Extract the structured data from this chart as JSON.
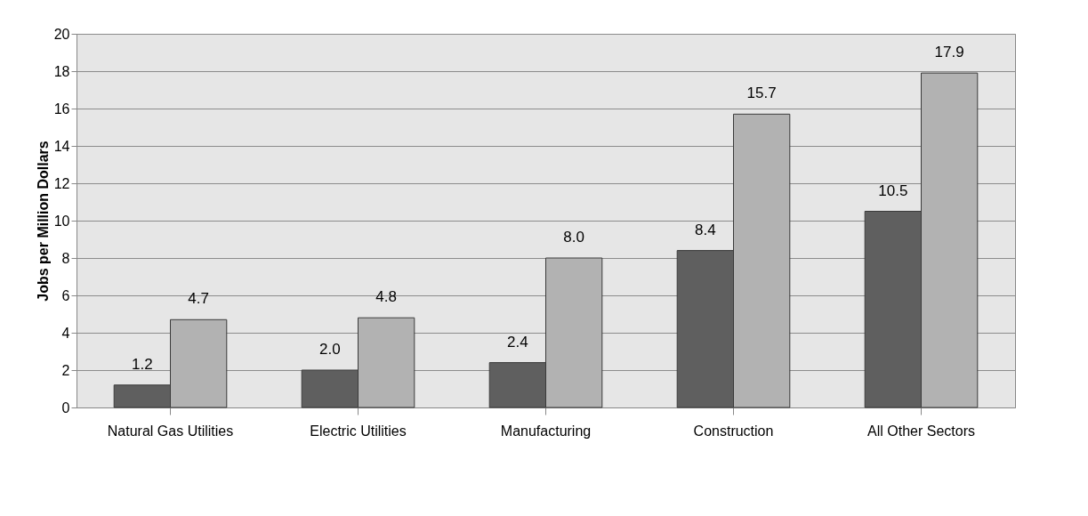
{
  "chart_data": {
    "type": "bar",
    "ylabel": "Jobs per Million Dollars",
    "categories": [
      "Natural Gas Utilities",
      "Electric   Utilities",
      "Manufacturing",
      "Construction",
      "All Other Sectors"
    ],
    "series": [
      {
        "color": "#5f5f5f",
        "values": [
          1.2,
          2.0,
          2.4,
          8.4,
          10.5
        ],
        "value_labels": [
          "1.2",
          "2.0",
          "2.4",
          "8.4",
          "10.5"
        ]
      },
      {
        "color": "#b2b2b2",
        "values": [
          4.7,
          4.8,
          8.0,
          15.7,
          17.9
        ],
        "value_labels": [
          "4.7",
          "4.8",
          "8.0",
          "15.7",
          "17.9"
        ]
      }
    ],
    "ylim": [
      0,
      20
    ],
    "yticks": [
      0,
      2,
      4,
      6,
      8,
      10,
      12,
      14,
      16,
      18,
      20
    ],
    "grid": "y"
  }
}
